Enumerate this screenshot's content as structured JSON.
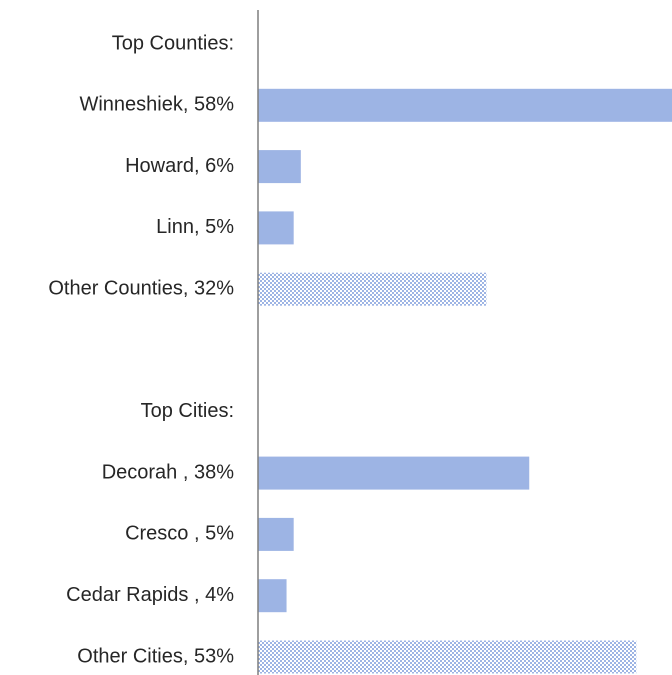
{
  "chart_data": {
    "type": "bar",
    "orientation": "horizontal",
    "title": "",
    "xlabel": "",
    "ylabel": "",
    "xlim": [
      0,
      58
    ],
    "grid": false,
    "legend": "none",
    "colors": {
      "solid": "#9db4e4",
      "hatched": "#9db4e4",
      "axis": "#7f7f7f",
      "label": "#262626"
    },
    "categories": [
      "Top Counties:",
      "Winneshiek, 58%",
      "Howard, 6%",
      "Linn, 5%",
      "Other Counties, 32%",
      "",
      "Top Cities:",
      "Decorah , 38%",
      "Cresco , 5%",
      "Cedar Rapids , 4%",
      "Other Cities, 53%"
    ],
    "values": [
      null,
      58,
      6,
      5,
      32,
      null,
      null,
      38,
      5,
      4,
      53
    ],
    "patterns": [
      "none",
      "solid",
      "solid",
      "solid",
      "hatched",
      "none",
      "none",
      "solid",
      "solid",
      "solid",
      "hatched"
    ]
  }
}
